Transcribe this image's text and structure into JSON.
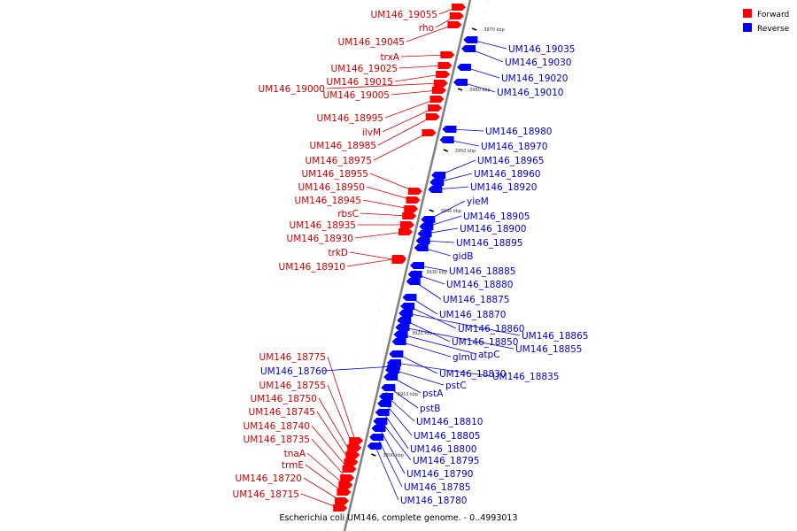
{
  "caption": "Escherichia coli UM146, complete genome. - 0..4993013",
  "legend": {
    "forward_label": "Forward",
    "reverse_label": "Reverse",
    "forward_color": "#ff0000",
    "reverse_color": "#0000ff"
  },
  "colors": {
    "forward_feature": "#ff0000",
    "forward_label": "#cc0000",
    "reverse_feature": "#0000ff",
    "reverse_label": "#0000cc",
    "backbone": "#808080"
  },
  "ticks": [
    "3970 kbp",
    "3960 kbp",
    "3950 kbp",
    "3940 kbp",
    "3930 kbp",
    "3920 kbp",
    "3910 kbp",
    "3900 kbp"
  ],
  "forward_genes": [
    "UM146_19055",
    "rho",
    "UM146_19045",
    "trxA",
    "UM146_19025",
    "UM146_19015",
    "UM146_19000",
    "UM146_19005",
    "UM146_18995",
    "ilvM",
    "UM146_18985",
    "UM146_18975",
    "UM146_18955",
    "UM146_18950",
    "UM146_18945",
    "rbsC",
    "UM146_18935",
    "UM146_18930",
    "trkD",
    "UM146_18910",
    "UM146_18775",
    "UM146_18755",
    "UM146_18750",
    "UM146_18745",
    "UM146_18740",
    "UM146_18735",
    "tnaA",
    "trmE",
    "UM146_18720",
    "UM146_18715"
  ],
  "reverse_genes": [
    "UM146_19035",
    "UM146_19030",
    "UM146_19020",
    "UM146_19010",
    "UM146_18980",
    "UM146_18970",
    "UM146_18965",
    "UM146_18960",
    "UM146_18920",
    "yieM",
    "UM146_18905",
    "UM146_18900",
    "UM146_18895",
    "gidB",
    "UM146_18885",
    "UM146_18880",
    "UM146_18875",
    "UM146_18870",
    "UM146_18860",
    "UM146_18865",
    "UM146_18850",
    "UM146_18855",
    "atpC",
    "glmU",
    "UM146_18830",
    "UM146_18835",
    "pstC",
    "pstA",
    "pstB",
    "UM146_18810",
    "UM146_18805",
    "UM146_18800",
    "UM146_18795",
    "UM146_18790",
    "UM146_18785",
    "UM146_18780",
    "UM146_18760"
  ]
}
